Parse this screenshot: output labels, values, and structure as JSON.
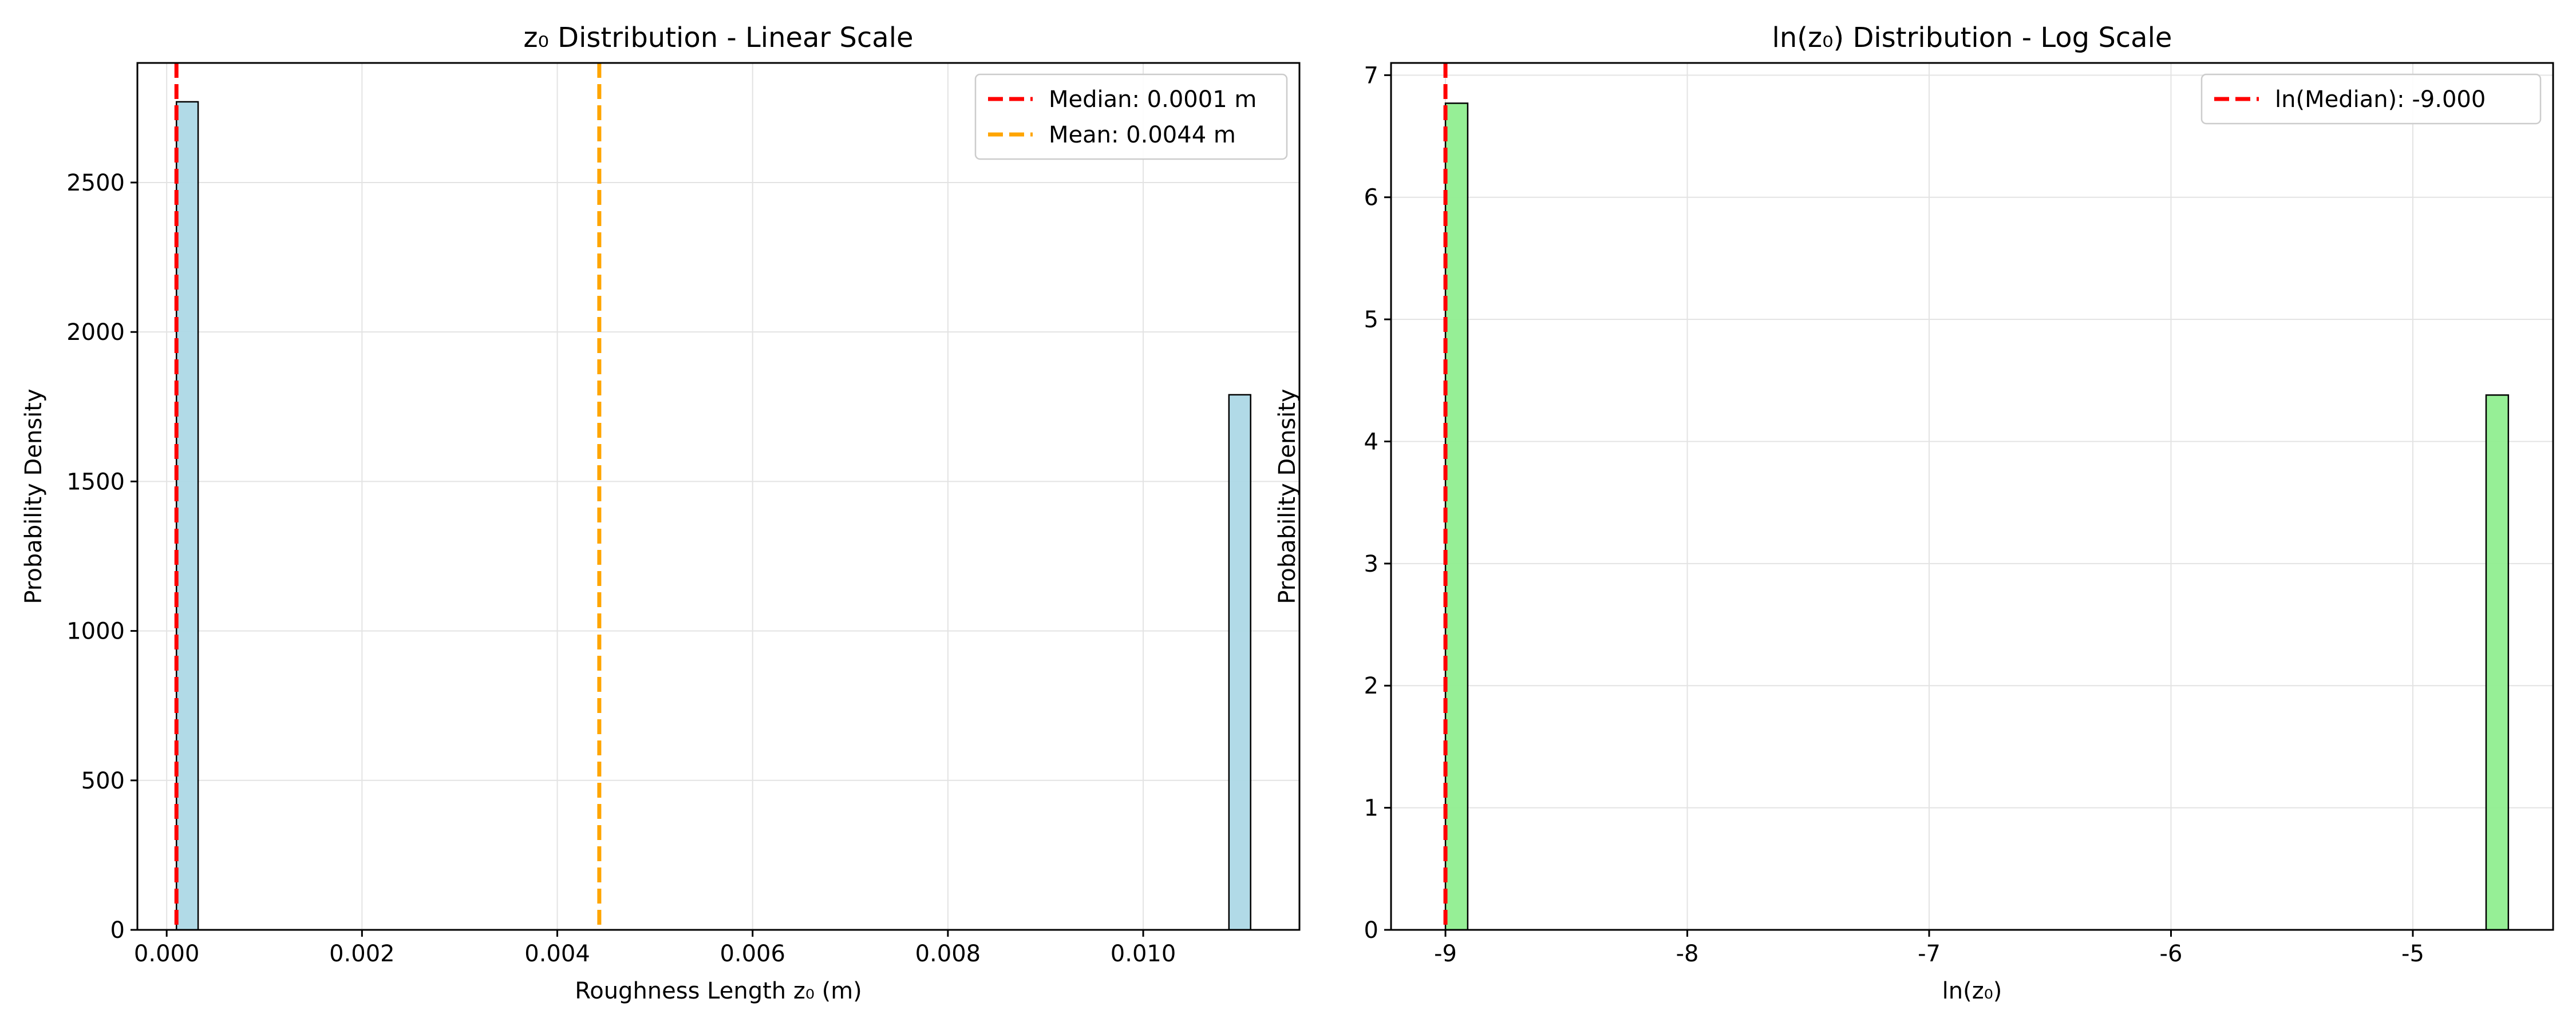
{
  "chart_data": [
    {
      "type": "bar",
      "title": "z₀ Distribution - Linear Scale",
      "xlabel": "Roughness Length z₀ (m)",
      "ylabel": "Probability Density",
      "xlim": [
        -0.0003,
        0.0116
      ],
      "ylim": [
        0,
        2900
      ],
      "xticks": [
        0.0,
        0.002,
        0.004,
        0.006,
        0.008,
        0.01
      ],
      "xtick_labels": [
        "0.000",
        "0.002",
        "0.004",
        "0.006",
        "0.008",
        "0.010"
      ],
      "yticks": [
        0,
        500,
        1000,
        1500,
        2000,
        2500
      ],
      "ytick_labels": [
        "0",
        "500",
        "1000",
        "1500",
        "2000",
        "2500"
      ],
      "grid": true,
      "bar_color": "#add8e6",
      "bars": [
        {
          "x0": 0.0001,
          "x1": 0.000322,
          "value": 2770
        },
        {
          "x0": 0.010878,
          "x1": 0.0111,
          "value": 1790
        }
      ],
      "vlines": [
        {
          "label": "Median: 0.0001 m",
          "x": 0.0001,
          "color": "#ff0000"
        },
        {
          "label": "Mean: 0.0044 m",
          "x": 0.00443,
          "color": "#ffa500"
        }
      ],
      "legend": "top-right"
    },
    {
      "type": "bar",
      "title": "ln(z₀) Distribution - Log Scale",
      "xlabel": "ln(z₀)",
      "ylabel": "Probability Density",
      "xlim": [
        -9.225,
        -4.42
      ],
      "ylim": [
        0,
        7.1
      ],
      "xticks": [
        -9,
        -8,
        -7,
        -6,
        -5
      ],
      "xtick_labels": [
        "-9",
        "-8",
        "-7",
        "-6",
        "-5"
      ],
      "yticks": [
        0,
        1,
        2,
        3,
        4,
        5,
        6,
        7
      ],
      "ytick_labels": [
        "0",
        "1",
        "2",
        "3",
        "4",
        "5",
        "6",
        "7"
      ],
      "grid": true,
      "bar_color": "#90ee90",
      "bars": [
        {
          "x0": -9.0,
          "x1": -8.908,
          "value": 6.77
        },
        {
          "x0": -4.697,
          "x1": -4.605,
          "value": 4.38
        }
      ],
      "vlines": [
        {
          "label": "ln(Median): -9.000",
          "x": -9.0,
          "color": "#ff0000"
        }
      ],
      "legend": "top-right"
    }
  ]
}
